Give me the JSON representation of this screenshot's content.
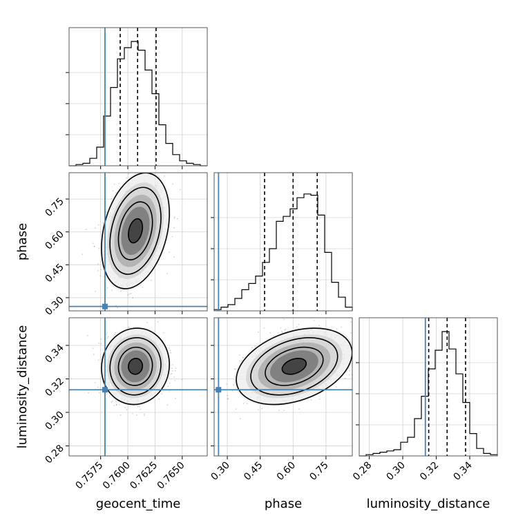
{
  "chart_data": {
    "type": "corner",
    "parameters": [
      {
        "name": "geocent_time",
        "label": "geocent_time",
        "range": [
          0.7546,
          0.7673
        ],
        "ticks": [
          "0.7575",
          "0.7600",
          "0.7625",
          "0.7650"
        ],
        "tick_values": [
          0.7575,
          0.76,
          0.7625,
          0.765
        ],
        "truth": 0.7579,
        "quantiles": [
          0.7593,
          0.7609,
          0.7626
        ]
      },
      {
        "name": "phase",
        "label": "phase",
        "range": [
          0.24,
          0.87
        ],
        "ticks": [
          "0.30",
          "0.45",
          "0.60",
          "0.75"
        ],
        "tick_values": [
          0.3,
          0.45,
          0.6,
          0.75
        ],
        "truth": 0.26,
        "quantiles": [
          0.47,
          0.6,
          0.71
        ]
      },
      {
        "name": "luminosity_distance",
        "label": "luminosity_distance",
        "range": [
          0.274,
          0.3565
        ],
        "ticks": [
          "0.28",
          "0.30",
          "0.32",
          "0.34"
        ],
        "tick_values": [
          0.28,
          0.3,
          0.32,
          0.34
        ],
        "truth": 0.3135,
        "quantiles": [
          0.3155,
          0.3265,
          0.3375
        ]
      }
    ],
    "histograms": [
      [
        0.0,
        0.01,
        0.02,
        0.06,
        0.15,
        0.4,
        0.63,
        0.86,
        0.95,
        1.0,
        0.93,
        0.77,
        0.58,
        0.33,
        0.18,
        0.09,
        0.04,
        0.02,
        0.01,
        0.0
      ],
      [
        0.01,
        0.03,
        0.05,
        0.1,
        0.17,
        0.22,
        0.28,
        0.39,
        0.5,
        0.72,
        0.76,
        0.82,
        0.91,
        0.94,
        0.93,
        0.77,
        0.47,
        0.23,
        0.11,
        0.03
      ],
      [
        0.0,
        0.01,
        0.02,
        0.03,
        0.04,
        0.05,
        0.11,
        0.15,
        0.3,
        0.48,
        0.7,
        0.85,
        1.0,
        0.86,
        0.66,
        0.43,
        0.18,
        0.06,
        0.02,
        0.01
      ]
    ],
    "pairs": [
      {
        "x": "geocent_time",
        "y": "phase",
        "mean": [
          0.7607,
          0.605
        ],
        "std": [
          0.0013,
          0.11
        ],
        "corr": 0.3
      },
      {
        "x": "geocent_time",
        "y": "luminosity_distance",
        "mean": [
          0.7607,
          0.3275
        ],
        "std": [
          0.0013,
          0.0095
        ],
        "corr": 0.05
      },
      {
        "x": "phase",
        "y": "luminosity_distance",
        "mean": [
          0.605,
          0.3275
        ],
        "std": [
          0.11,
          0.0095
        ],
        "corr": 0.35
      }
    ],
    "grid": true,
    "truth_color": "#4682b4",
    "contour_color": "#000000"
  }
}
